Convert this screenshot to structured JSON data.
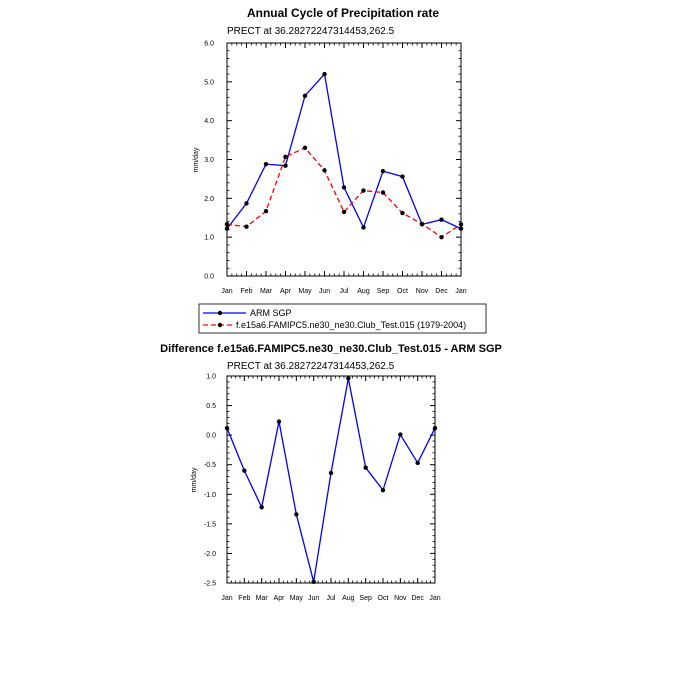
{
  "chart_data": [
    {
      "type": "line",
      "title": "Annual Cycle of Precipitation rate",
      "subtitle": "PRECT at 36.28272247314453,262.5",
      "xlabel": "",
      "ylabel": "mm/day",
      "categories": [
        "Jan",
        "Feb",
        "Mar",
        "Apr",
        "May",
        "Jun",
        "Jul",
        "Aug",
        "Sep",
        "Oct",
        "Nov",
        "Dec",
        "Jan"
      ],
      "ylim": [
        0,
        6
      ],
      "yticks": [
        {
          "v": 0,
          "label": "0.0"
        },
        {
          "v": 1,
          "label": "1.0"
        },
        {
          "v": 2,
          "label": "2.0"
        },
        {
          "v": 3,
          "label": "3.0"
        },
        {
          "v": 4,
          "label": "4.0"
        },
        {
          "v": 5,
          "label": "5.0"
        },
        {
          "v": 6,
          "label": "6.0"
        }
      ],
      "series": [
        {
          "name": "ARM SGP",
          "color": "#0000ff",
          "dash": "solid",
          "values": [
            1.22,
            1.87,
            2.88,
            2.84,
            4.64,
            5.2,
            2.28,
            1.25,
            2.7,
            2.56,
            1.33,
            1.45,
            1.22
          ]
        },
        {
          "name": "f.e15a6.FAMIPC5.ne30_ne30.Club_Test.015 (1979-2004)",
          "color": "#ff0000",
          "dash": "dashed",
          "values": [
            1.33,
            1.27,
            1.67,
            3.07,
            3.3,
            2.72,
            1.65,
            2.2,
            2.15,
            1.62,
            1.34,
            1.0,
            1.33
          ]
        }
      ],
      "legend_position": "bottom"
    },
    {
      "type": "line",
      "title": "Difference f.e15a6.FAMIPC5.ne30_ne30.Club_Test.015 - ARM SGP",
      "subtitle": "PRECT at 36.28272247314453,262.5",
      "xlabel": "",
      "ylabel": "mm/day",
      "categories": [
        "Jan",
        "Feb",
        "Mar",
        "Apr",
        "May",
        "Jun",
        "Jul",
        "Aug",
        "Sep",
        "Oct",
        "Nov",
        "Dec",
        "Jan"
      ],
      "ylim": [
        -2.5,
        1.0
      ],
      "yticks": [
        {
          "v": -2.5,
          "label": "-2.5"
        },
        {
          "v": -2.0,
          "label": "-2.0"
        },
        {
          "v": -1.5,
          "label": "-1.5"
        },
        {
          "v": -1.0,
          "label": "-1.0"
        },
        {
          "v": -0.5,
          "label": "-0.5"
        },
        {
          "v": 0.0,
          "label": "0.0"
        },
        {
          "v": 0.5,
          "label": "0.5"
        },
        {
          "v": 1.0,
          "label": "1.0"
        }
      ],
      "series": [
        {
          "name": "Difference",
          "color": "#0000ff",
          "dash": "solid",
          "values": [
            0.12,
            -0.6,
            -1.22,
            0.23,
            -1.34,
            -2.48,
            -0.64,
            0.96,
            -0.55,
            -0.93,
            0.01,
            -0.47,
            0.12
          ]
        }
      ]
    }
  ]
}
